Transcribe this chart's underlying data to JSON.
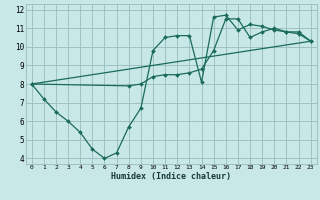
{
  "xlabel": "Humidex (Indice chaleur)",
  "bg_color": "#c8e8e8",
  "grid_color": "#99bbbb",
  "line_color": "#1a6b5a",
  "xlim": [
    -0.5,
    23.5
  ],
  "ylim": [
    3.7,
    12.3
  ],
  "xticks": [
    0,
    1,
    2,
    3,
    4,
    5,
    6,
    7,
    8,
    9,
    10,
    11,
    12,
    13,
    14,
    15,
    16,
    17,
    18,
    19,
    20,
    21,
    22,
    23
  ],
  "yticks": [
    4,
    5,
    6,
    7,
    8,
    9,
    10,
    11,
    12
  ],
  "line1_x": [
    0,
    1,
    2,
    3,
    4,
    5,
    6,
    7,
    8,
    9,
    10,
    11,
    12,
    13,
    14,
    15,
    16,
    17,
    18,
    19,
    20,
    21,
    22,
    23
  ],
  "line1_y": [
    8.0,
    7.2,
    6.5,
    6.0,
    5.4,
    4.5,
    4.0,
    4.3,
    5.7,
    6.7,
    9.8,
    10.5,
    10.6,
    10.6,
    8.1,
    11.6,
    11.7,
    10.9,
    11.2,
    11.1,
    10.9,
    10.8,
    10.8,
    10.3
  ],
  "line2_x": [
    0,
    8,
    9,
    10,
    11,
    12,
    13,
    14,
    15,
    16,
    17,
    18,
    19,
    20,
    21,
    22,
    23
  ],
  "line2_y": [
    8.0,
    7.9,
    8.0,
    8.4,
    8.5,
    8.5,
    8.6,
    8.8,
    9.8,
    11.5,
    11.5,
    10.5,
    10.8,
    11.0,
    10.8,
    10.7,
    10.3
  ],
  "line3_x": [
    0,
    23
  ],
  "line3_y": [
    8.0,
    10.3
  ]
}
